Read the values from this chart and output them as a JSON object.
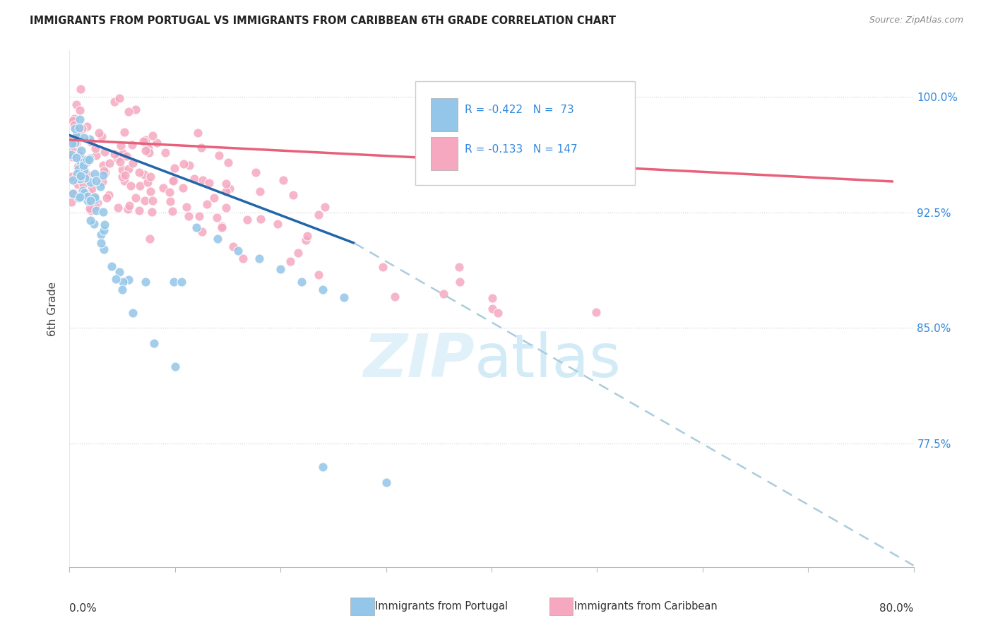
{
  "title": "IMMIGRANTS FROM PORTUGAL VS IMMIGRANTS FROM CARIBBEAN 6TH GRADE CORRELATION CHART",
  "source": "Source: ZipAtlas.com",
  "ylabel": "6th Grade",
  "ytick_labels": [
    "100.0%",
    "92.5%",
    "85.0%",
    "77.5%"
  ],
  "ytick_values": [
    1.0,
    0.925,
    0.85,
    0.775
  ],
  "xlim": [
    0.0,
    0.8
  ],
  "ylim": [
    0.695,
    1.03
  ],
  "legend_r1": "R = -0.422",
  "legend_n1": "N =  73",
  "legend_r2": "R = -0.133",
  "legend_n2": "N = 147",
  "blue_color": "#93c6e8",
  "pink_color": "#f5a8c0",
  "trendline_blue": "#2266aa",
  "trendline_pink": "#e8607a",
  "trendline_dashed_color": "#aaccdd",
  "background_color": "#ffffff",
  "grid_color": "#cccccc",
  "title_color": "#222222",
  "source_color": "#888888",
  "axis_label_color": "#444444",
  "right_tick_color": "#3388dd"
}
